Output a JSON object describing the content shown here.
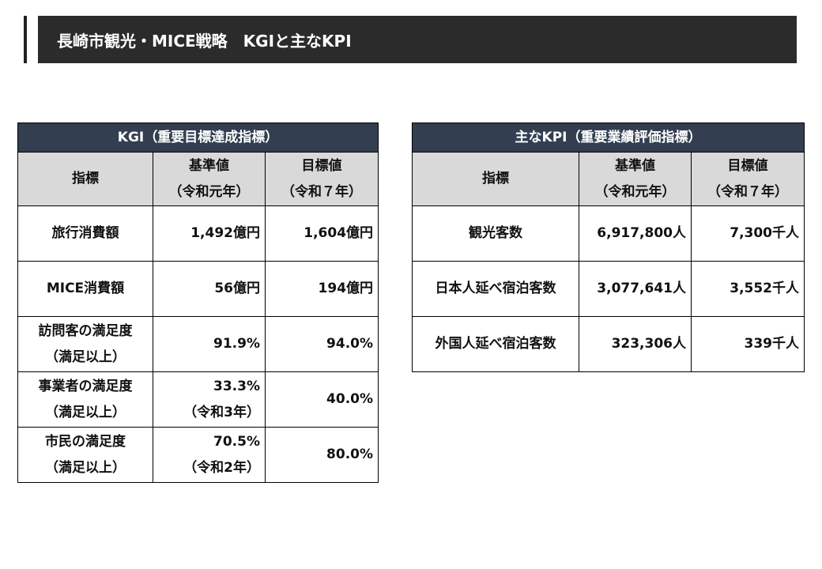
{
  "header": {
    "title": "長崎市観光・MICE戦略　KGIと主なKPI"
  },
  "kgi_table": {
    "caption": "KGI（重要目標達成指標）",
    "columns": {
      "indicator": "指標",
      "base_label": "基準値",
      "base_sub": "（令和元年）",
      "target_label": "目標値",
      "target_sub": "（令和７年）"
    },
    "rows": [
      {
        "indicator": "旅行消費額",
        "indicator_sub": "",
        "base": "1,492億円",
        "base_sub": "",
        "target": "1,604億円"
      },
      {
        "indicator": "MICE消費額",
        "indicator_sub": "",
        "base": "56億円",
        "base_sub": "",
        "target": "194億円"
      },
      {
        "indicator": "訪問客の満足度",
        "indicator_sub": "（満足以上）",
        "base": "91.9%",
        "base_sub": "",
        "target": "94.0%"
      },
      {
        "indicator": "事業者の満足度",
        "indicator_sub": "（満足以上）",
        "base": "33.3%",
        "base_sub": "（令和3年）",
        "target": "40.0%"
      },
      {
        "indicator": "市民の満足度",
        "indicator_sub": "（満足以上）",
        "base": "70.5%",
        "base_sub": "（令和2年）",
        "target": "80.0%"
      }
    ]
  },
  "kpi_table": {
    "caption": "主なKPI（重要業績評価指標）",
    "columns": {
      "indicator": "指標",
      "base_label": "基準値",
      "base_sub": "（令和元年）",
      "target_label": "目標値",
      "target_sub": "（令和７年）"
    },
    "rows": [
      {
        "indicator": "観光客数",
        "base": "6,917,800人",
        "target": "7,300千人"
      },
      {
        "indicator": "日本人延べ宿泊客数",
        "base": "3,077,641人",
        "target": "3,552千人"
      },
      {
        "indicator": "外国人延べ宿泊客数",
        "base": "323,306人",
        "target": "339千人"
      }
    ]
  },
  "colors": {
    "title_bar": "#2b2b2b",
    "table_header": "#333f50",
    "column_header": "#d9d9d9"
  }
}
